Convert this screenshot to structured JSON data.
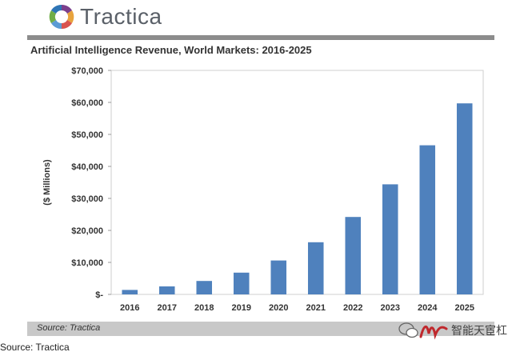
{
  "logo": {
    "brand": "Tractica"
  },
  "chart_data": {
    "type": "bar",
    "title": "Artificial Intelligence Revenue, World Markets: 2016-2025",
    "xlabel": "",
    "ylabel": "($ Millions)",
    "categories": [
      "2016",
      "2017",
      "2018",
      "2019",
      "2020",
      "2021",
      "2022",
      "2023",
      "2024",
      "2025"
    ],
    "values": [
      1400,
      2500,
      4200,
      6800,
      10600,
      16300,
      24200,
      34400,
      46600,
      59700
    ],
    "ylim": [
      0,
      70000
    ],
    "yticks": [
      0,
      10000,
      20000,
      30000,
      40000,
      50000,
      60000,
      70000
    ],
    "ytick_labels": [
      "$-",
      "$10,000",
      "$20,000",
      "$30,000",
      "$40,000",
      "$50,000",
      "$60,000",
      "$70,000"
    ],
    "grid": false,
    "bar_color": "#4f81bd"
  },
  "source_band": {
    "text": "Source: Tractica"
  },
  "footer": {
    "source": "Source: Tractica"
  },
  "watermark": {
    "text": "智能天宦杠"
  }
}
